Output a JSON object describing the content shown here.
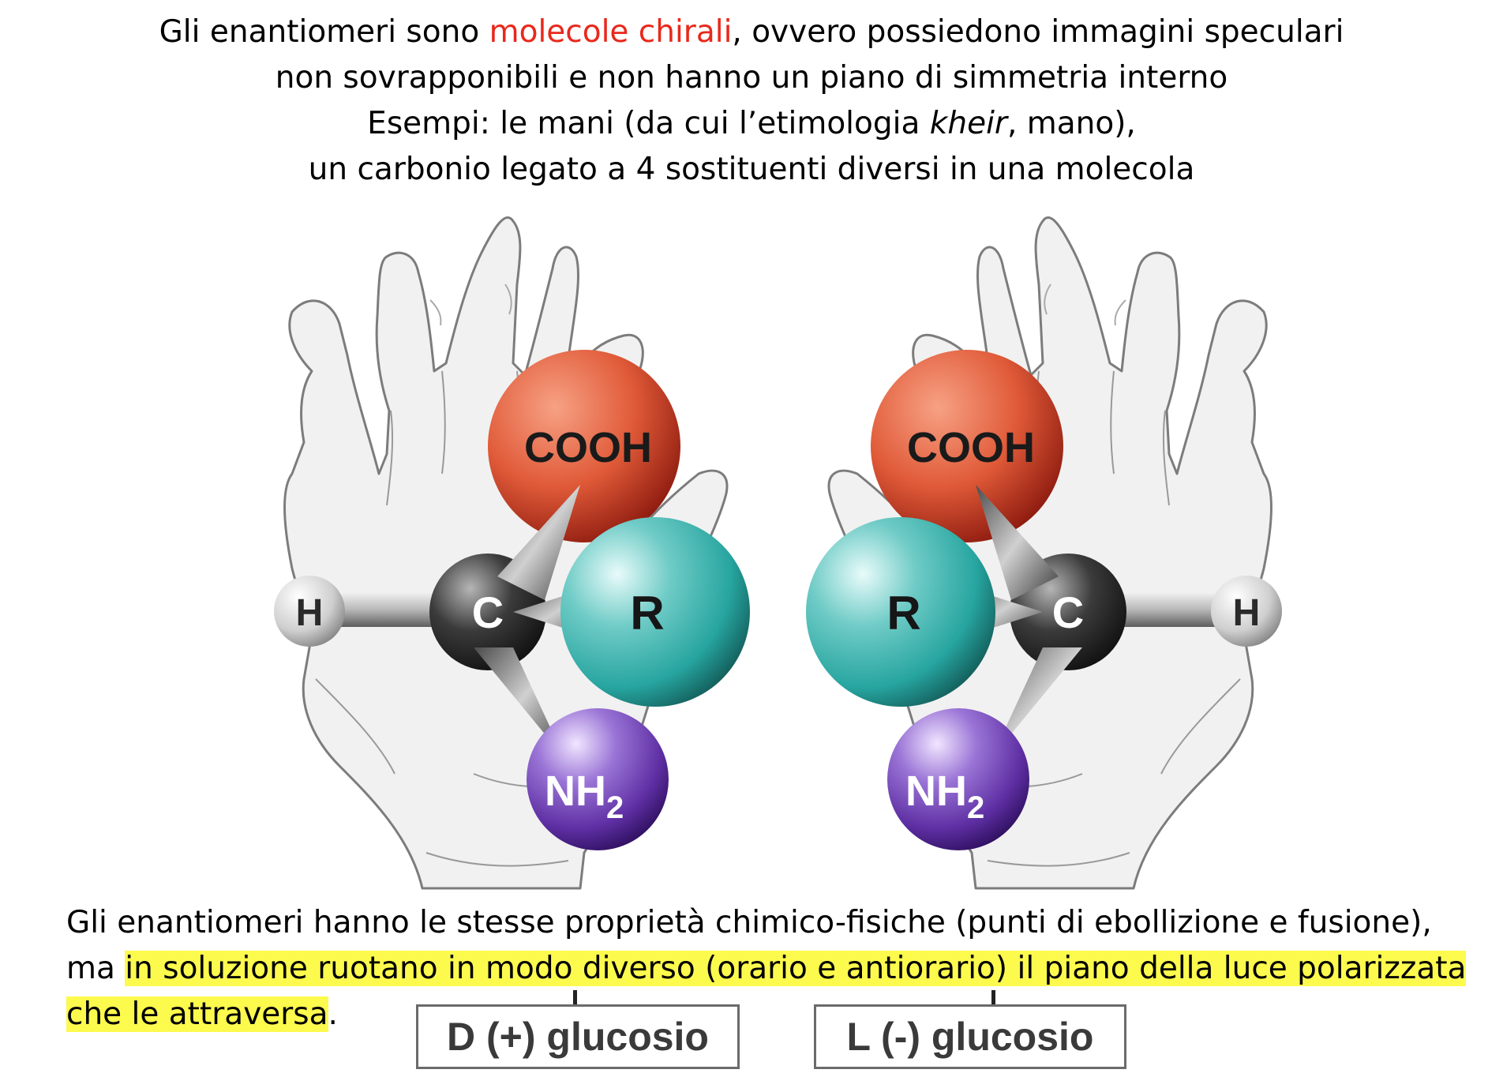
{
  "intro": {
    "line1_a": "Gli enantiomeri sono ",
    "line1_red": "molecole chirali",
    "line1_b": ", ovvero possiedono immagini speculari",
    "line2": "non sovrapponibili e non hanno un piano di simmetria interno",
    "line3_a": "Esempi: le mani (da cui l’etimologia ",
    "line3_italic": "kheir",
    "line3_b": ", mano),",
    "line4": "un carbonio legato a 4 sostituenti diversi in una molecola"
  },
  "molecules": {
    "left": {
      "cooh": "COOH",
      "carbon": "C",
      "r": "R",
      "h": "H",
      "nh": "NH",
      "sub": "2"
    },
    "right": {
      "cooh": "COOH",
      "carbon": "C",
      "r": "R",
      "h": "H",
      "nh": "NH",
      "sub": "2"
    }
  },
  "bottom": {
    "line1": "Gli enantiomeri hanno le stesse proprietà chimico-fisiche (punti di ebollizione e fusione),",
    "line2_a": "ma ",
    "line2_hl": "in soluzione ruotano in modo diverso (orario e antiorario) il piano della luce polarizzata",
    "line3_hl": "che le attraversa",
    "line3_b": "."
  },
  "labels": {
    "left_glucose": "D (+) glucosio",
    "right_glucose": "L (-) glucosio"
  },
  "colors": {
    "red_text": "#e8291c",
    "highlight": "#fdfa4e",
    "cooh": "#e05a38",
    "r": "#27a5a0",
    "nh2": "#6a3fb0",
    "carbon": "#2e2e2e",
    "hydrogen": "#c8c8c8"
  }
}
